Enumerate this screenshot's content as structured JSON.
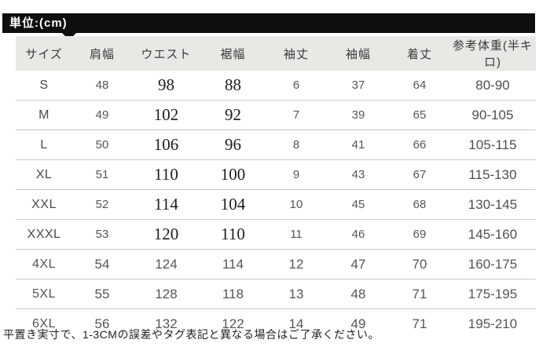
{
  "unit_badge": "単位:(cm)",
  "footer_note": "平置き実寸で、1-3CMの誤差やタグ表記と異なる場合はご了承ください。",
  "colors": {
    "badge_bg": "#0e0e0e",
    "badge_text": "#ffffff",
    "header_row_bg": "#e9e8e5",
    "divider": "#c9c9c9",
    "number_text": "#555555",
    "serif_number_text": "#1d1d1d"
  },
  "chart_data": {
    "type": "table",
    "title": "単位:(cm)",
    "columns": [
      "サイズ",
      "肩幅",
      "ウエスト",
      "裾幅",
      "袖丈",
      "袖幅",
      "着丈",
      "参考体重(半キロ)"
    ],
    "rows": [
      [
        "S",
        "48",
        "98",
        "88",
        "6",
        "37",
        "64",
        "80-90"
      ],
      [
        "M",
        "49",
        "102",
        "92",
        "7",
        "39",
        "65",
        "90-105"
      ],
      [
        "L",
        "50",
        "106",
        "96",
        "8",
        "41",
        "66",
        "105-115"
      ],
      [
        "XL",
        "51",
        "110",
        "100",
        "9",
        "43",
        "67",
        "115-130"
      ],
      [
        "XXL",
        "52",
        "114",
        "104",
        "10",
        "45",
        "68",
        "130-145"
      ],
      [
        "XXXL",
        "53",
        "120",
        "110",
        "11",
        "46",
        "69",
        "145-160"
      ],
      [
        "4XL",
        "54",
        "124",
        "114",
        "12",
        "47",
        "70",
        "160-175"
      ],
      [
        "5XL",
        "55",
        "128",
        "118",
        "13",
        "48",
        "71",
        "175-195"
      ],
      [
        "6XL",
        "56",
        "132",
        "122",
        "14",
        "49",
        "71",
        "195-210"
      ]
    ]
  }
}
